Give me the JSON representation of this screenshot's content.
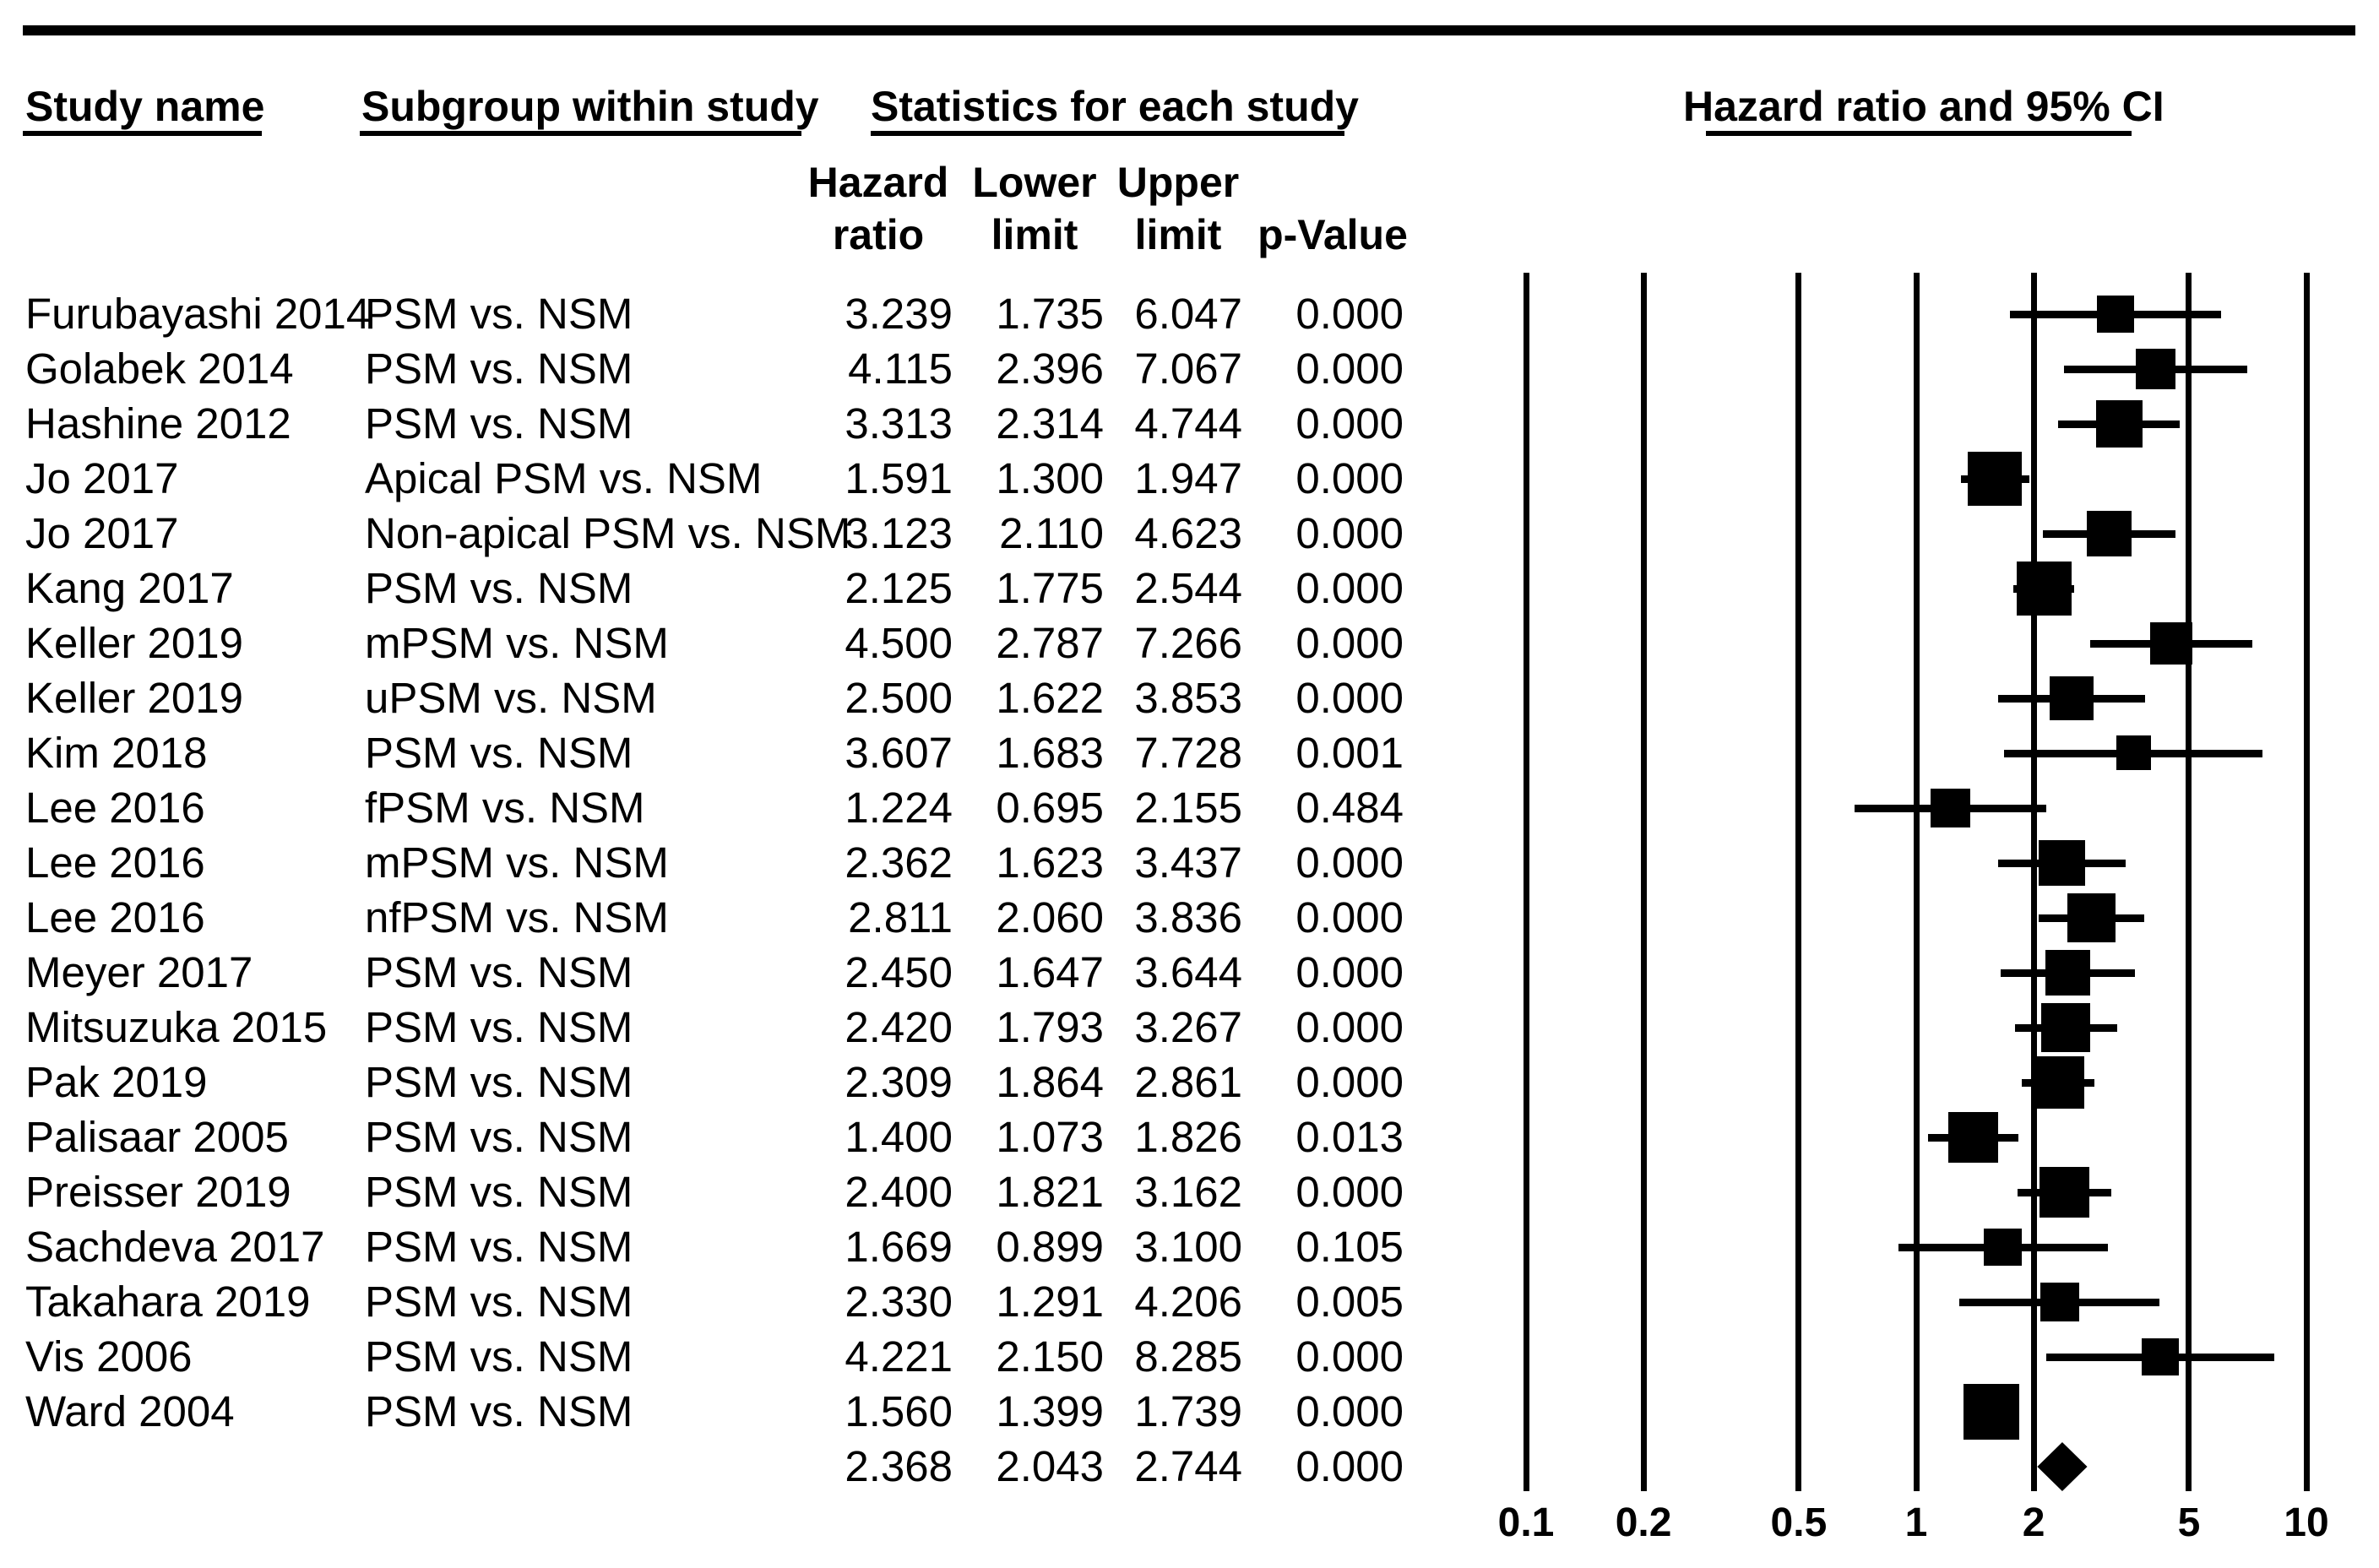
{
  "headers": {
    "study_name": "Study name",
    "subgroup": "Subgroup within study",
    "statistics": "Statistics for each study",
    "plot": "Hazard ratio and 95% CI"
  },
  "stat_columns": {
    "hazard_line1": "Hazard",
    "hazard_line2": "ratio",
    "lower_line1": "Lower",
    "lower_line2": "limit",
    "upper_line1": "Upper",
    "upper_line2": "limit",
    "p_value": "p-Value"
  },
  "chart_data": {
    "type": "forest",
    "title": "Hazard ratio and 95% CI",
    "x_axis": {
      "scale": "log",
      "min": 0.1,
      "max": 10,
      "ticks": [
        "0.1",
        "0.2",
        "0.5",
        "1",
        "2",
        "5",
        "10"
      ]
    },
    "legend_position": "none",
    "grid": "vertical-log-lines",
    "rows": [
      {
        "study": "Furubayashi 2014",
        "subgroup": "PSM vs. NSM",
        "hazard_ratio": "3.239",
        "lower_limit": "1.735",
        "upper_limit": "6.047",
        "p_value": "0.000"
      },
      {
        "study": "Golabek 2014",
        "subgroup": "PSM vs. NSM",
        "hazard_ratio": "4.115",
        "lower_limit": "2.396",
        "upper_limit": "7.067",
        "p_value": "0.000"
      },
      {
        "study": "Hashine 2012",
        "subgroup": "PSM vs. NSM",
        "hazard_ratio": "3.313",
        "lower_limit": "2.314",
        "upper_limit": "4.744",
        "p_value": "0.000"
      },
      {
        "study": "Jo 2017",
        "subgroup": "Apical PSM vs. NSM",
        "hazard_ratio": "1.591",
        "lower_limit": "1.300",
        "upper_limit": "1.947",
        "p_value": "0.000"
      },
      {
        "study": "Jo 2017",
        "subgroup": "Non-apical PSM vs. NSM",
        "hazard_ratio": "3.123",
        "lower_limit": "2.110",
        "upper_limit": "4.623",
        "p_value": "0.000"
      },
      {
        "study": "Kang 2017",
        "subgroup": "PSM vs. NSM",
        "hazard_ratio": "2.125",
        "lower_limit": "1.775",
        "upper_limit": "2.544",
        "p_value": "0.000"
      },
      {
        "study": "Keller 2019",
        "subgroup": "mPSM vs. NSM",
        "hazard_ratio": "4.500",
        "lower_limit": "2.787",
        "upper_limit": "7.266",
        "p_value": "0.000"
      },
      {
        "study": "Keller 2019",
        "subgroup": "uPSM vs. NSM",
        "hazard_ratio": "2.500",
        "lower_limit": "1.622",
        "upper_limit": "3.853",
        "p_value": "0.000"
      },
      {
        "study": "Kim 2018",
        "subgroup": "PSM vs. NSM",
        "hazard_ratio": "3.607",
        "lower_limit": "1.683",
        "upper_limit": "7.728",
        "p_value": "0.001"
      },
      {
        "study": "Lee 2016",
        "subgroup": "fPSM vs. NSM",
        "hazard_ratio": "1.224",
        "lower_limit": "0.695",
        "upper_limit": "2.155",
        "p_value": "0.484"
      },
      {
        "study": "Lee 2016",
        "subgroup": "mPSM vs. NSM",
        "hazard_ratio": "2.362",
        "lower_limit": "1.623",
        "upper_limit": "3.437",
        "p_value": "0.000"
      },
      {
        "study": "Lee 2016",
        "subgroup": "nfPSM vs. NSM",
        "hazard_ratio": "2.811",
        "lower_limit": "2.060",
        "upper_limit": "3.836",
        "p_value": "0.000"
      },
      {
        "study": "Meyer 2017",
        "subgroup": "PSM vs. NSM",
        "hazard_ratio": "2.450",
        "lower_limit": "1.647",
        "upper_limit": "3.644",
        "p_value": "0.000"
      },
      {
        "study": "Mitsuzuka 2015",
        "subgroup": "PSM vs. NSM",
        "hazard_ratio": "2.420",
        "lower_limit": "1.793",
        "upper_limit": "3.267",
        "p_value": "0.000"
      },
      {
        "study": "Pak 2019",
        "subgroup": "PSM vs. NSM",
        "hazard_ratio": "2.309",
        "lower_limit": "1.864",
        "upper_limit": "2.861",
        "p_value": "0.000"
      },
      {
        "study": "Palisaar 2005",
        "subgroup": "PSM vs. NSM",
        "hazard_ratio": "1.400",
        "lower_limit": "1.073",
        "upper_limit": "1.826",
        "p_value": "0.013"
      },
      {
        "study": "Preisser 2019",
        "subgroup": "PSM vs. NSM",
        "hazard_ratio": "2.400",
        "lower_limit": "1.821",
        "upper_limit": "3.162",
        "p_value": "0.000"
      },
      {
        "study": "Sachdeva 2017",
        "subgroup": "PSM vs. NSM",
        "hazard_ratio": "1.669",
        "lower_limit": "0.899",
        "upper_limit": "3.100",
        "p_value": "0.105"
      },
      {
        "study": "Takahara 2019",
        "subgroup": "PSM vs. NSM",
        "hazard_ratio": "2.330",
        "lower_limit": "1.291",
        "upper_limit": "4.206",
        "p_value": "0.005"
      },
      {
        "study": "Vis 2006",
        "subgroup": "PSM vs. NSM",
        "hazard_ratio": "4.221",
        "lower_limit": "2.150",
        "upper_limit": "8.285",
        "p_value": "0.000"
      },
      {
        "study": "Ward 2004",
        "subgroup": "PSM vs. NSM",
        "hazard_ratio": "1.560",
        "lower_limit": "1.399",
        "upper_limit": "1.739",
        "p_value": "0.000"
      }
    ],
    "summary": {
      "hazard_ratio": "2.368",
      "lower_limit": "2.043",
      "upper_limit": "2.744",
      "p_value": "0.000"
    },
    "colors": {
      "marker": "#000000",
      "line": "#000000",
      "text": "#000000",
      "background": "#ffffff"
    }
  }
}
